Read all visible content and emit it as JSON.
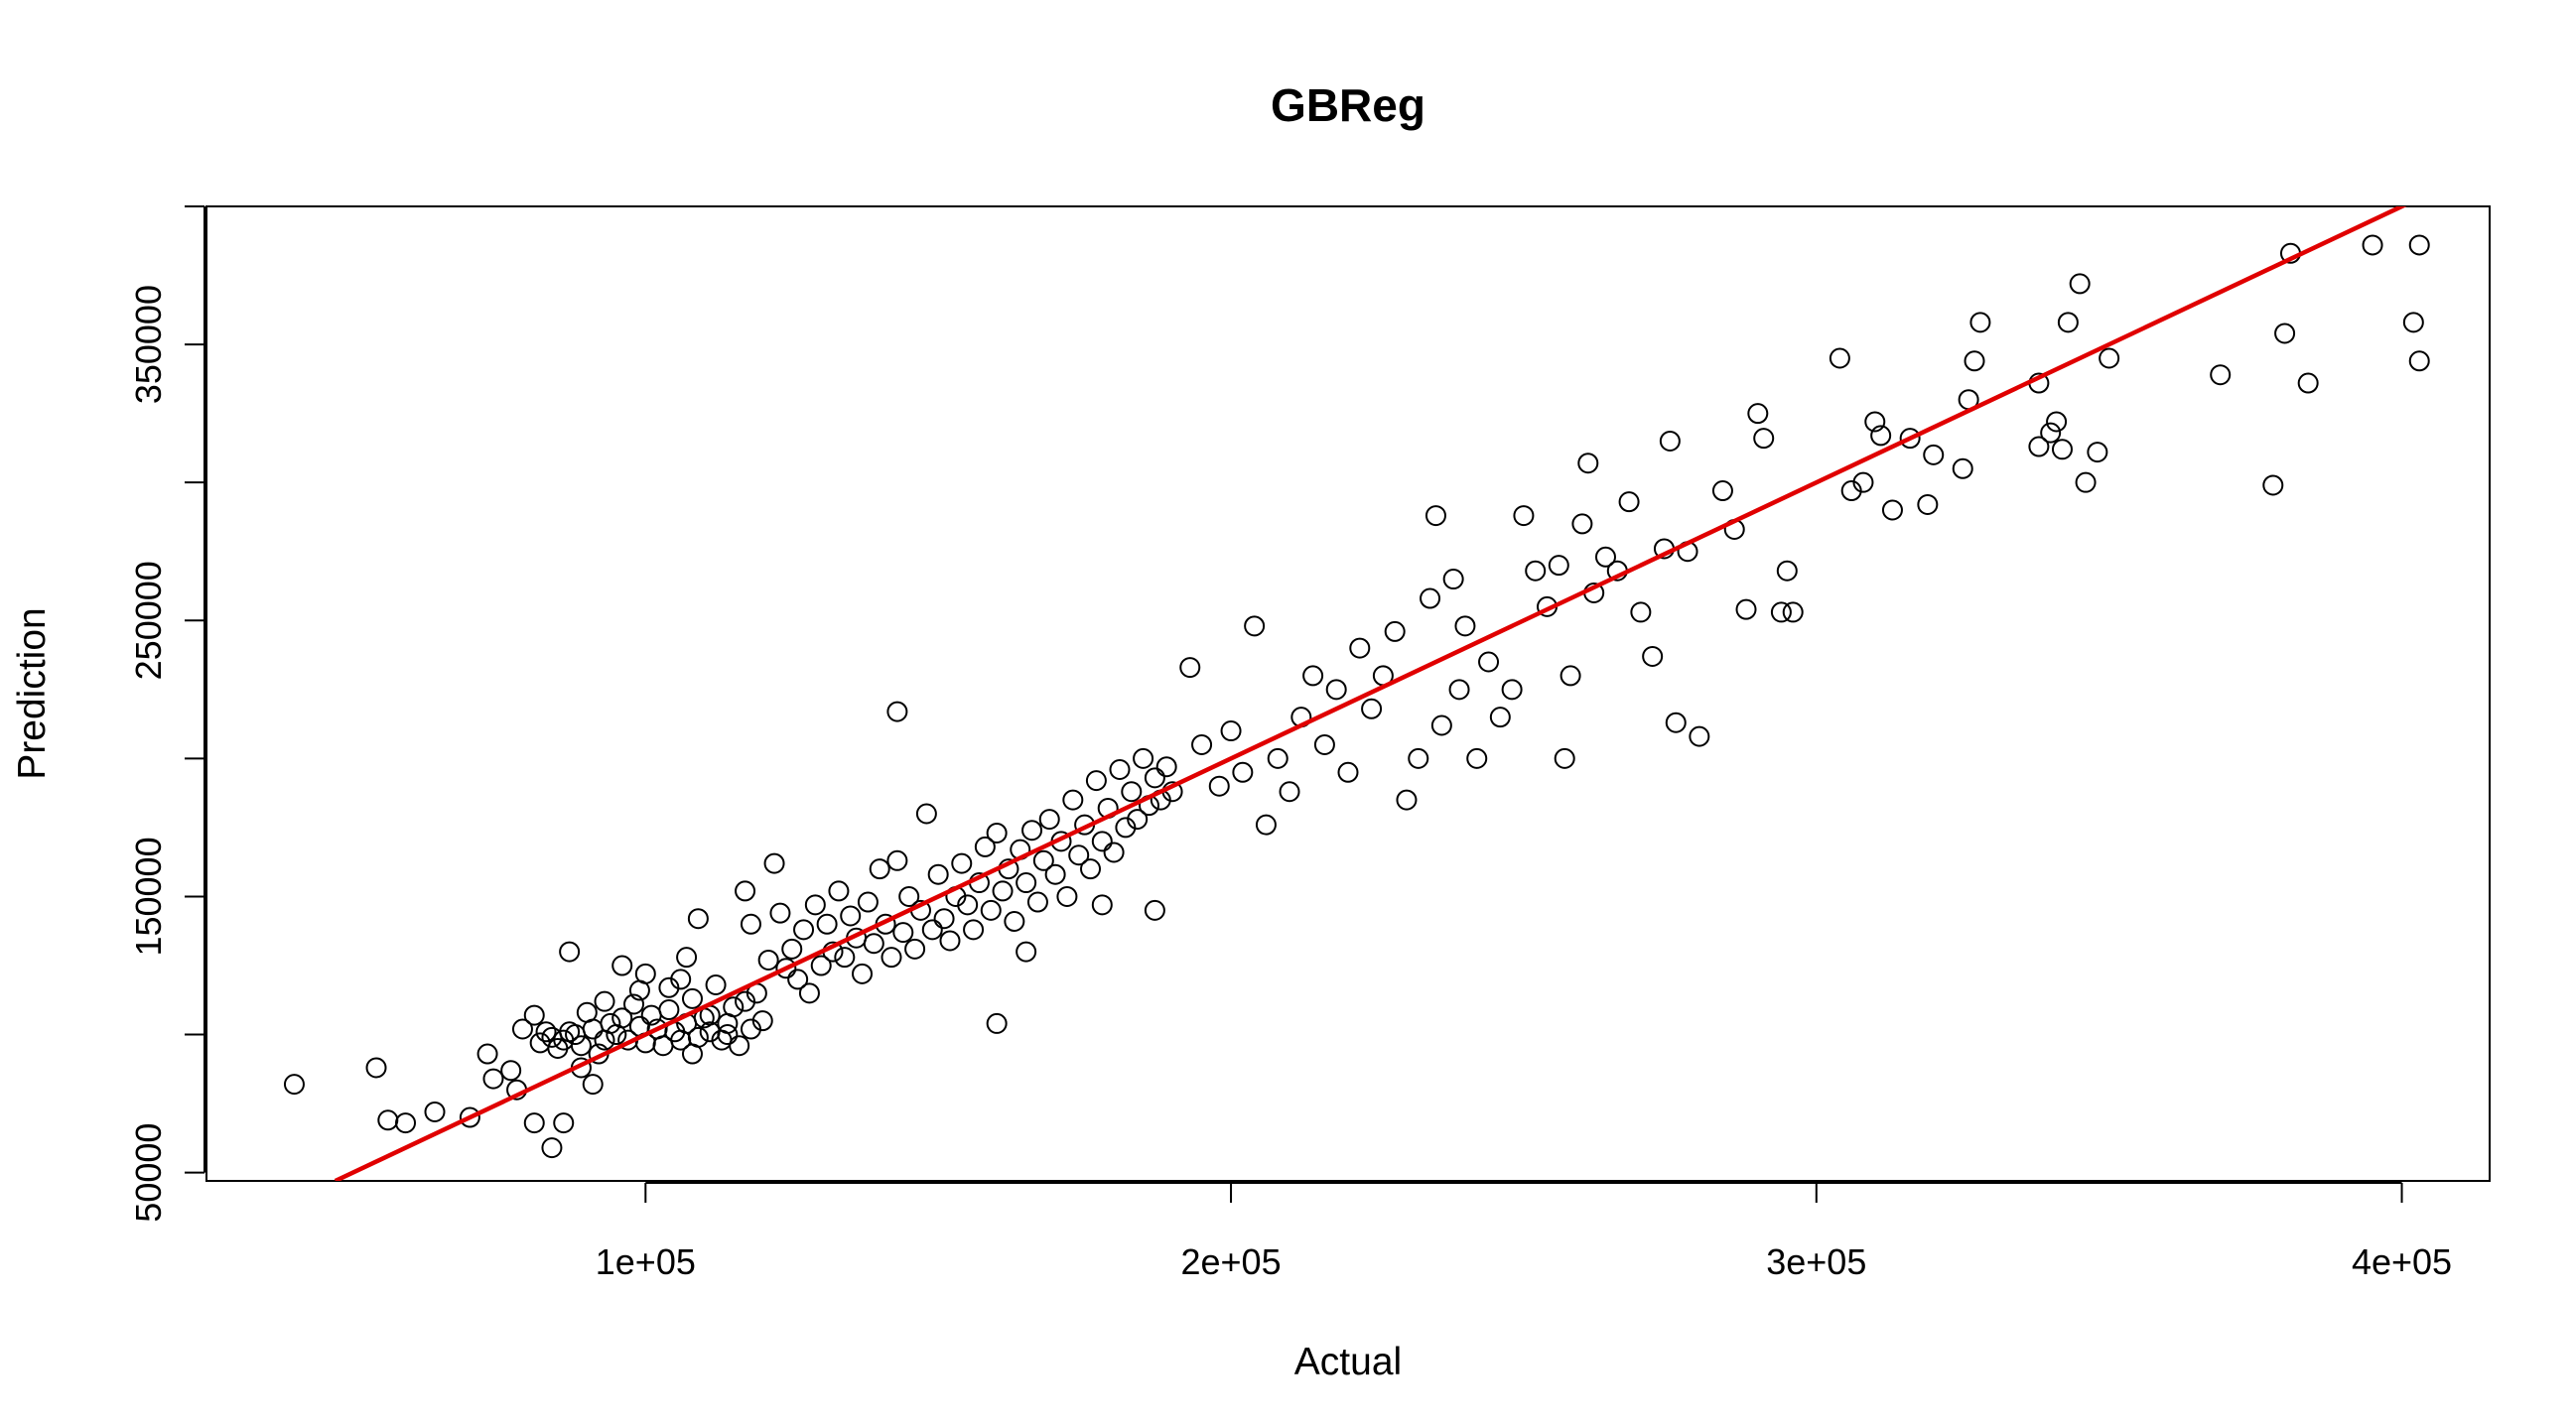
{
  "chart_data": {
    "type": "scatter",
    "title": "GBReg",
    "xlabel": "Actual",
    "ylabel": "Prediction",
    "xlim": [
      25000,
      415000
    ],
    "ylim": [
      47000,
      400000
    ],
    "x_ticks": [
      100000,
      200000,
      300000,
      400000
    ],
    "x_tick_labels": [
      "1e+05",
      "2e+05",
      "3e+05",
      "4e+05"
    ],
    "y_ticks": [
      50000,
      100000,
      150000,
      200000,
      250000,
      300000,
      350000,
      400000
    ],
    "y_tick_labels": [
      "50000",
      "",
      "150000",
      "",
      "250000",
      "",
      "350000",
      ""
    ],
    "grid": false,
    "colors": {
      "points": "#000000",
      "fit_line": "#e00000"
    },
    "fit_line": {
      "x": [
        47000,
        404000
      ],
      "y": [
        47000,
        404000
      ]
    },
    "series": [
      {
        "points": [
          [
            40000,
            82000
          ],
          [
            54000,
            88000
          ],
          [
            56000,
            69000
          ],
          [
            59000,
            68000
          ],
          [
            64000,
            72000
          ],
          [
            70000,
            70000
          ],
          [
            73000,
            93000
          ],
          [
            74000,
            84000
          ],
          [
            77000,
            87000
          ],
          [
            78000,
            80000
          ],
          [
            79000,
            102000
          ],
          [
            81000,
            107000
          ],
          [
            82000,
            97000
          ],
          [
            83000,
            101000
          ],
          [
            84000,
            99000
          ],
          [
            85000,
            95000
          ],
          [
            86000,
            98000
          ],
          [
            87000,
            101000
          ],
          [
            88000,
            100000
          ],
          [
            89000,
            96000
          ],
          [
            90000,
            108000
          ],
          [
            91000,
            102000
          ],
          [
            92000,
            93000
          ],
          [
            93000,
            98000
          ],
          [
            94000,
            104000
          ],
          [
            95000,
            100000
          ],
          [
            96000,
            106000
          ],
          [
            97000,
            98000
          ],
          [
            98000,
            111000
          ],
          [
            99000,
            103000
          ],
          [
            100000,
            97000
          ],
          [
            101000,
            107000
          ],
          [
            102000,
            102000
          ],
          [
            103000,
            96000
          ],
          [
            104000,
            109000
          ],
          [
            105000,
            101000
          ],
          [
            106000,
            98000
          ],
          [
            107000,
            104000
          ],
          [
            108000,
            113000
          ],
          [
            109000,
            99000
          ],
          [
            110000,
            106000
          ],
          [
            111000,
            101000
          ],
          [
            112000,
            118000
          ],
          [
            113000,
            98000
          ],
          [
            114000,
            104000
          ],
          [
            115000,
            110000
          ],
          [
            116000,
            96000
          ],
          [
            117000,
            112000
          ],
          [
            118000,
            102000
          ],
          [
            119000,
            115000
          ],
          [
            120000,
            105000
          ],
          [
            84000,
            59000
          ],
          [
            81000,
            68000
          ],
          [
            86000,
            68000
          ],
          [
            89000,
            88000
          ],
          [
            91000,
            82000
          ],
          [
            87000,
            130000
          ],
          [
            93000,
            112000
          ],
          [
            96000,
            125000
          ],
          [
            99000,
            116000
          ],
          [
            100000,
            122000
          ],
          [
            104000,
            117000
          ],
          [
            107000,
            128000
          ],
          [
            109000,
            142000
          ],
          [
            106000,
            120000
          ],
          [
            108000,
            93000
          ],
          [
            111000,
            107000
          ],
          [
            114000,
            100000
          ],
          [
            117000,
            152000
          ],
          [
            118000,
            140000
          ],
          [
            121000,
            127000
          ],
          [
            122000,
            162000
          ],
          [
            123000,
            144000
          ],
          [
            124000,
            124000
          ],
          [
            125000,
            131000
          ],
          [
            126000,
            120000
          ],
          [
            127000,
            138000
          ],
          [
            128000,
            115000
          ],
          [
            129000,
            147000
          ],
          [
            130000,
            125000
          ],
          [
            131000,
            140000
          ],
          [
            132000,
            130000
          ],
          [
            133000,
            152000
          ],
          [
            134000,
            128000
          ],
          [
            135000,
            143000
          ],
          [
            136000,
            135000
          ],
          [
            137000,
            122000
          ],
          [
            138000,
            148000
          ],
          [
            139000,
            133000
          ],
          [
            140000,
            160000
          ],
          [
            141000,
            140000
          ],
          [
            142000,
            128000
          ],
          [
            143000,
            163000
          ],
          [
            144000,
            137000
          ],
          [
            145000,
            150000
          ],
          [
            146000,
            131000
          ],
          [
            147000,
            145000
          ],
          [
            148000,
            180000
          ],
          [
            149000,
            138000
          ],
          [
            150000,
            158000
          ],
          [
            151000,
            142000
          ],
          [
            152000,
            134000
          ],
          [
            153000,
            150000
          ],
          [
            154000,
            162000
          ],
          [
            155000,
            147000
          ],
          [
            156000,
            138000
          ],
          [
            157000,
            155000
          ],
          [
            158000,
            168000
          ],
          [
            159000,
            145000
          ],
          [
            160000,
            173000
          ],
          [
            161000,
            152000
          ],
          [
            162000,
            160000
          ],
          [
            163000,
            141000
          ],
          [
            164000,
            167000
          ],
          [
            165000,
            155000
          ],
          [
            166000,
            174000
          ],
          [
            167000,
            148000
          ],
          [
            168000,
            163000
          ],
          [
            169000,
            178000
          ],
          [
            170000,
            158000
          ],
          [
            171000,
            170000
          ],
          [
            172000,
            150000
          ],
          [
            173000,
            185000
          ],
          [
            174000,
            165000
          ],
          [
            175000,
            176000
          ],
          [
            176000,
            160000
          ],
          [
            177000,
            192000
          ],
          [
            178000,
            170000
          ],
          [
            179000,
            182000
          ],
          [
            180000,
            166000
          ],
          [
            181000,
            196000
          ],
          [
            182000,
            175000
          ],
          [
            183000,
            188000
          ],
          [
            184000,
            178000
          ],
          [
            185000,
            200000
          ],
          [
            186000,
            183000
          ],
          [
            187000,
            193000
          ],
          [
            188000,
            185000
          ],
          [
            189000,
            197000
          ],
          [
            190000,
            188000
          ],
          [
            143000,
            217000
          ],
          [
            160000,
            104000
          ],
          [
            165000,
            130000
          ],
          [
            178000,
            147000
          ],
          [
            187000,
            145000
          ],
          [
            193000,
            233000
          ],
          [
            195000,
            205000
          ],
          [
            198000,
            190000
          ],
          [
            200000,
            210000
          ],
          [
            202000,
            195000
          ],
          [
            204000,
            248000
          ],
          [
            206000,
            176000
          ],
          [
            208000,
            200000
          ],
          [
            210000,
            188000
          ],
          [
            212000,
            215000
          ],
          [
            214000,
            230000
          ],
          [
            216000,
            205000
          ],
          [
            218000,
            225000
          ],
          [
            220000,
            195000
          ],
          [
            222000,
            240000
          ],
          [
            224000,
            218000
          ],
          [
            226000,
            230000
          ],
          [
            228000,
            246000
          ],
          [
            230000,
            185000
          ],
          [
            232000,
            200000
          ],
          [
            234000,
            258000
          ],
          [
            235000,
            288000
          ],
          [
            236000,
            212000
          ],
          [
            238000,
            265000
          ],
          [
            239000,
            225000
          ],
          [
            240000,
            248000
          ],
          [
            242000,
            200000
          ],
          [
            244000,
            235000
          ],
          [
            246000,
            215000
          ],
          [
            248000,
            225000
          ],
          [
            250000,
            288000
          ],
          [
            252000,
            268000
          ],
          [
            254000,
            255000
          ],
          [
            256000,
            270000
          ],
          [
            257000,
            200000
          ],
          [
            258000,
            230000
          ],
          [
            260000,
            285000
          ],
          [
            261000,
            307000
          ],
          [
            262000,
            260000
          ],
          [
            264000,
            273000
          ],
          [
            266000,
            268000
          ],
          [
            268000,
            293000
          ],
          [
            270000,
            253000
          ],
          [
            272000,
            237000
          ],
          [
            274000,
            276000
          ],
          [
            275000,
            315000
          ],
          [
            276000,
            213000
          ],
          [
            278000,
            275000
          ],
          [
            280000,
            208000
          ],
          [
            284000,
            297000
          ],
          [
            286000,
            283000
          ],
          [
            288000,
            254000
          ],
          [
            290000,
            325000
          ],
          [
            291000,
            316000
          ],
          [
            294000,
            253000
          ],
          [
            295000,
            268000
          ],
          [
            296000,
            253000
          ],
          [
            304000,
            345000
          ],
          [
            306000,
            297000
          ],
          [
            308000,
            300000
          ],
          [
            310000,
            322000
          ],
          [
            311000,
            317000
          ],
          [
            313000,
            290000
          ],
          [
            316000,
            316000
          ],
          [
            319000,
            292000
          ],
          [
            320000,
            310000
          ],
          [
            325000,
            305000
          ],
          [
            326000,
            330000
          ],
          [
            327000,
            344000
          ],
          [
            328000,
            358000
          ],
          [
            338000,
            336000
          ],
          [
            338000,
            313000
          ],
          [
            340000,
            318000
          ],
          [
            341000,
            322000
          ],
          [
            342000,
            312000
          ],
          [
            343000,
            358000
          ],
          [
            345000,
            372000
          ],
          [
            346000,
            300000
          ],
          [
            348000,
            311000
          ],
          [
            350000,
            345000
          ],
          [
            369000,
            339000
          ],
          [
            378000,
            299000
          ],
          [
            380000,
            354000
          ],
          [
            381000,
            383000
          ],
          [
            384000,
            336000
          ],
          [
            395000,
            386000
          ],
          [
            402000,
            358000
          ],
          [
            403000,
            386000
          ],
          [
            403000,
            344000
          ]
        ]
      }
    ]
  }
}
